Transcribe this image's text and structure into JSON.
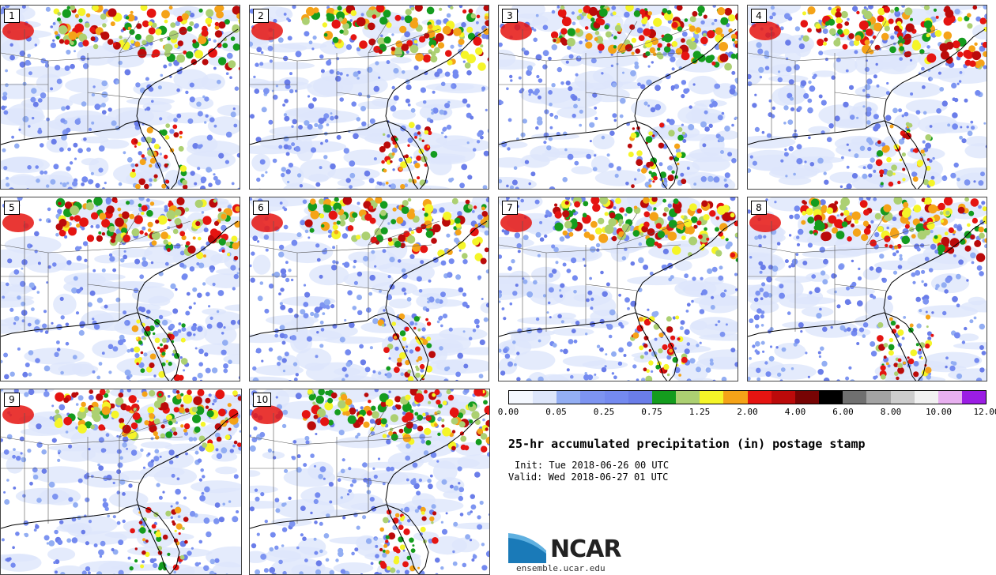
{
  "members": [
    {
      "label": "1",
      "seed": 11,
      "north": 0.95
    },
    {
      "label": "2",
      "seed": 22,
      "north": 0.85
    },
    {
      "label": "3",
      "seed": 33,
      "north": 1.0
    },
    {
      "label": "4",
      "seed": 44,
      "north": 0.9
    },
    {
      "label": "5",
      "seed": 55,
      "north": 0.9
    },
    {
      "label": "6",
      "seed": 66,
      "north": 0.85
    },
    {
      "label": "7",
      "seed": 77,
      "north": 0.95
    },
    {
      "label": "8",
      "seed": 88,
      "north": 1.0
    },
    {
      "label": "9",
      "seed": 99,
      "north": 0.9
    },
    {
      "label": "10",
      "seed": 101,
      "north": 0.95
    }
  ],
  "colorbar": {
    "colors": [
      "#f4f8ff",
      "#dde6fb",
      "#93aef3",
      "#7d94f1",
      "#748af0",
      "#6a7de9",
      "#149c1e",
      "#acd072",
      "#f5f528",
      "#f5a318",
      "#e51411",
      "#bb0a0a",
      "#770404",
      "#000000",
      "#707070",
      "#a3a3a3",
      "#cdcdcd",
      "#f1f1f1",
      "#e8b0f0",
      "#9b1de4"
    ],
    "tick_labels": [
      "0.00",
      "0.05",
      "0.25",
      "0.75",
      "1.25",
      "2.00",
      "4.00",
      "6.00",
      "8.00",
      "10.00",
      "12.00"
    ]
  },
  "title": "25-hr accumulated precipitation (in) postage stamp",
  "init": "Init: Tue 2018-06-26 00 UTC",
  "valid": "Valid: Wed 2018-06-27 01 UTC",
  "logo": {
    "text": "NCAR",
    "url": "ensemble.ucar.edu"
  }
}
